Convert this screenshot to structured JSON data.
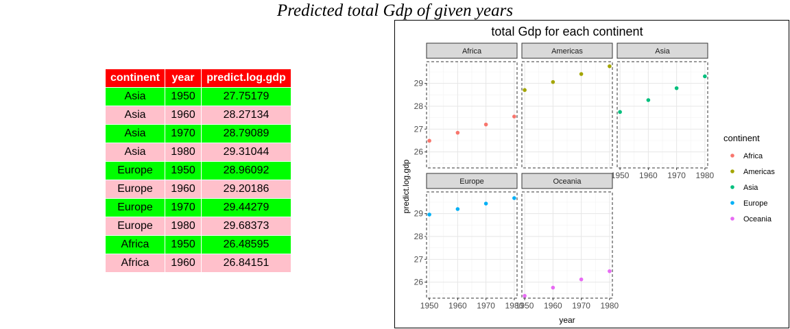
{
  "page": {
    "title": "Predicted total Gdp of given years"
  },
  "table": {
    "headers": [
      "continent",
      "year",
      "predict.log.gdp"
    ],
    "rows": [
      [
        "Asia",
        "1950",
        "27.75179"
      ],
      [
        "Asia",
        "1960",
        "28.27134"
      ],
      [
        "Asia",
        "1970",
        "28.79089"
      ],
      [
        "Asia",
        "1980",
        "29.31044"
      ],
      [
        "Europe",
        "1950",
        "28.96092"
      ],
      [
        "Europe",
        "1960",
        "29.20186"
      ],
      [
        "Europe",
        "1970",
        "29.44279"
      ],
      [
        "Europe",
        "1980",
        "29.68373"
      ],
      [
        "Africa",
        "1950",
        "26.48595"
      ],
      [
        "Africa",
        "1960",
        "26.84151"
      ]
    ],
    "colors": {
      "header": "#ff0000",
      "row_even": "#00ff00",
      "row_odd": "#ffc0cb"
    }
  },
  "chart_data": {
    "type": "scatter",
    "title": "total Gdp for each continent",
    "xlabel": "year",
    "ylabel": "predict.log.gdp",
    "x_ticks": [
      1950,
      1960,
      1970,
      1980
    ],
    "y_ticks": [
      26,
      27,
      28,
      29
    ],
    "xlim": [
      1949,
      1981
    ],
    "ylim": [
      25.3,
      29.95
    ],
    "grid": true,
    "legend": {
      "title": "continent",
      "position": "right",
      "entries": [
        "Africa",
        "Americas",
        "Asia",
        "Europe",
        "Oceania"
      ]
    },
    "series": [
      {
        "name": "Africa",
        "color": "#F8766D",
        "x": [
          1950,
          1960,
          1970,
          1980
        ],
        "y": [
          26.49,
          26.84,
          27.2,
          27.55
        ]
      },
      {
        "name": "Americas",
        "color": "#A3A500",
        "x": [
          1950,
          1960,
          1970,
          1980
        ],
        "y": [
          28.71,
          29.06,
          29.41,
          29.75
        ]
      },
      {
        "name": "Asia",
        "color": "#00BF7D",
        "x": [
          1950,
          1960,
          1970,
          1980
        ],
        "y": [
          27.75,
          28.27,
          28.79,
          29.31
        ]
      },
      {
        "name": "Europe",
        "color": "#00B0F6",
        "x": [
          1950,
          1960,
          1970,
          1980
        ],
        "y": [
          28.96,
          29.2,
          29.44,
          29.68
        ]
      },
      {
        "name": "Oceania",
        "color": "#E76BF3",
        "x": [
          1950,
          1960,
          1970,
          1980
        ],
        "y": [
          25.4,
          25.76,
          26.12,
          26.48
        ]
      }
    ]
  }
}
